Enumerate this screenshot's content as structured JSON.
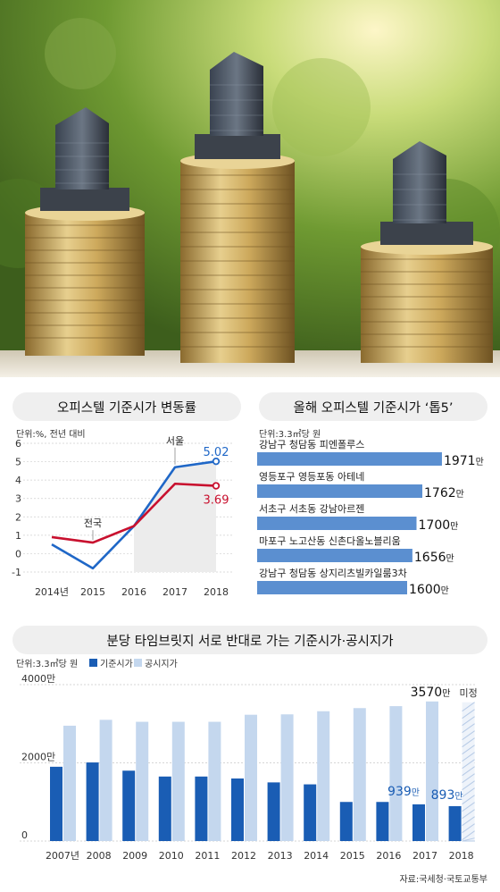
{
  "chart_data": [
    {
      "type": "line",
      "title": "오피스텔 기준시가 변동률",
      "unit": "단위:%, 전년 대비",
      "categories": [
        "2014년",
        "2015",
        "2016",
        "2017",
        "2018"
      ],
      "yticks": [
        "6",
        "5",
        "4",
        "3",
        "2",
        "1",
        "0",
        "-1"
      ],
      "ylim": [
        -1,
        6
      ],
      "series": [
        {
          "name": "서울",
          "values": [
            0.5,
            -0.8,
            1.5,
            4.7,
            5.02
          ],
          "color": "#1f67c7",
          "end_label": "5.02"
        },
        {
          "name": "전국",
          "values": [
            0.9,
            0.6,
            1.5,
            3.8,
            3.69
          ],
          "color": "#c8102e",
          "end_label": "3.69"
        }
      ]
    },
    {
      "type": "bar",
      "orientation": "horizontal",
      "title": "올해 오피스텔 기준시가 ‘톱5’",
      "unit": "단위:3.3㎡당 원",
      "color": "#5b8fd0",
      "xlim": [
        0,
        2000
      ],
      "items": [
        {
          "label": "강남구 청담동 피엔폴루스",
          "value": 1971,
          "value_label": "1971",
          "suffix": "만"
        },
        {
          "label": "영등포구 영등포동 아테네",
          "value": 1762,
          "value_label": "1762",
          "suffix": "만"
        },
        {
          "label": "서초구 서초동 강남아르젠",
          "value": 1700,
          "value_label": "1700",
          "suffix": "만"
        },
        {
          "label": "마포구 노고산동 신촌다올노블리움",
          "value": 1656,
          "value_label": "1656",
          "suffix": "만"
        },
        {
          "label": "강남구 청담동 상지리츠빌카일룸3차",
          "value": 1600,
          "value_label": "1600",
          "suffix": "만"
        }
      ]
    },
    {
      "type": "bar",
      "title": "분당 타임브릿지 서로 반대로 가는 기준시가·공시지가",
      "unit": "단위:3.3㎡당 원",
      "categories": [
        "2007년",
        "2008",
        "2009",
        "2010",
        "2011",
        "2012",
        "2013",
        "2014",
        "2015",
        "2016",
        "2017",
        "2018"
      ],
      "yticks": [
        {
          "value": 4000,
          "label": "4000만"
        },
        {
          "value": 2000,
          "label": "2000만"
        },
        {
          "value": 0,
          "label": "0"
        }
      ],
      "ylim": [
        0,
        4000
      ],
      "series": [
        {
          "name": "기준시가",
          "color": "#1a5db4",
          "values": [
            1900,
            2010,
            1800,
            1650,
            1650,
            1600,
            1500,
            1450,
            1000,
            1000,
            939,
            893
          ]
        },
        {
          "name": "공시지가",
          "color": "#c4d7ee",
          "values": [
            2950,
            3100,
            3050,
            3050,
            3050,
            3230,
            3240,
            3320,
            3400,
            3450,
            3570,
            null
          ]
        }
      ],
      "annotations": {
        "max_label": "3570",
        "max_suffix": "만",
        "pending_label": "미정",
        "label_2017": "939",
        "label_2018": "893",
        "suffix": "만"
      }
    }
  ],
  "source": "자료:국세청·국토교통부"
}
